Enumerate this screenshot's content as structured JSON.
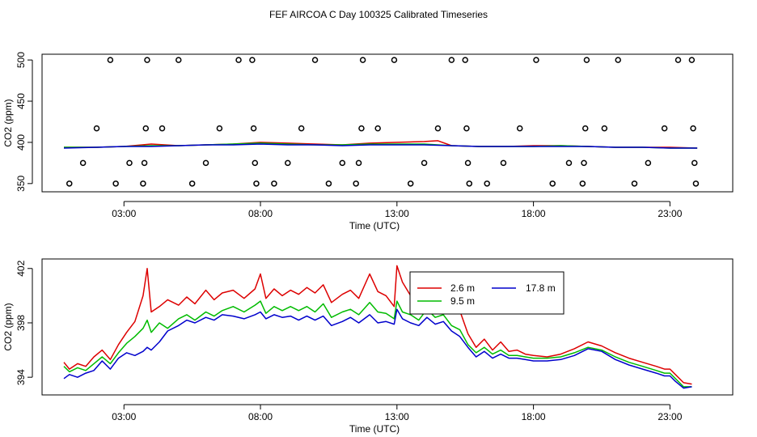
{
  "title": "FEF AIRCOA C  Day 100325  Calibrated Timeseries",
  "colors": {
    "red": "#dd0000",
    "green": "#00bb00",
    "blue": "#0000cc",
    "axis": "#000000"
  },
  "chart_data": [
    {
      "type": "scatter+line",
      "name": "top-panel",
      "xlabel": "Time (UTC)",
      "ylabel": "CO2 (ppm)",
      "xlim": [
        0,
        25.3
      ],
      "ylim": [
        340,
        507
      ],
      "xticks": [
        3,
        8,
        13,
        18,
        23
      ],
      "xtick_labels": [
        "03:00",
        "08:00",
        "13:00",
        "18:00",
        "23:00"
      ],
      "yticks": [
        350,
        400,
        450,
        500
      ],
      "ytick_labels": [
        "350",
        "400",
        "450",
        "500"
      ],
      "reference_points": [
        {
          "x": 1.0,
          "y": 350
        },
        {
          "x": 1.5,
          "y": 375
        },
        {
          "x": 2.0,
          "y": 417
        },
        {
          "x": 2.5,
          "y": 500
        },
        {
          "x": 2.7,
          "y": 350
        },
        {
          "x": 3.2,
          "y": 375
        },
        {
          "x": 3.7,
          "y": 350
        },
        {
          "x": 3.75,
          "y": 375
        },
        {
          "x": 3.8,
          "y": 417
        },
        {
          "x": 3.85,
          "y": 500
        },
        {
          "x": 4.4,
          "y": 417
        },
        {
          "x": 5.0,
          "y": 500
        },
        {
          "x": 5.5,
          "y": 350
        },
        {
          "x": 6.0,
          "y": 375
        },
        {
          "x": 6.5,
          "y": 417
        },
        {
          "x": 7.2,
          "y": 500
        },
        {
          "x": 7.7,
          "y": 500
        },
        {
          "x": 7.75,
          "y": 417
        },
        {
          "x": 7.8,
          "y": 375
        },
        {
          "x": 7.85,
          "y": 350
        },
        {
          "x": 8.5,
          "y": 350
        },
        {
          "x": 9.0,
          "y": 375
        },
        {
          "x": 9.5,
          "y": 417
        },
        {
          "x": 10.0,
          "y": 500
        },
        {
          "x": 10.5,
          "y": 350
        },
        {
          "x": 11.0,
          "y": 375
        },
        {
          "x": 11.5,
          "y": 350
        },
        {
          "x": 11.6,
          "y": 375
        },
        {
          "x": 11.7,
          "y": 417
        },
        {
          "x": 11.75,
          "y": 500
        },
        {
          "x": 12.3,
          "y": 417
        },
        {
          "x": 12.9,
          "y": 500
        },
        {
          "x": 13.5,
          "y": 350
        },
        {
          "x": 14.0,
          "y": 375
        },
        {
          "x": 14.5,
          "y": 417
        },
        {
          "x": 15.0,
          "y": 500
        },
        {
          "x": 15.5,
          "y": 500
        },
        {
          "x": 15.55,
          "y": 417
        },
        {
          "x": 15.6,
          "y": 375
        },
        {
          "x": 15.65,
          "y": 350
        },
        {
          "x": 16.3,
          "y": 350
        },
        {
          "x": 16.9,
          "y": 375
        },
        {
          "x": 17.5,
          "y": 417
        },
        {
          "x": 18.1,
          "y": 500
        },
        {
          "x": 18.7,
          "y": 350
        },
        {
          "x": 19.3,
          "y": 375
        },
        {
          "x": 19.8,
          "y": 350
        },
        {
          "x": 19.85,
          "y": 375
        },
        {
          "x": 19.9,
          "y": 417
        },
        {
          "x": 19.95,
          "y": 500
        },
        {
          "x": 20.6,
          "y": 417
        },
        {
          "x": 21.1,
          "y": 500
        },
        {
          "x": 21.7,
          "y": 350
        },
        {
          "x": 22.2,
          "y": 375
        },
        {
          "x": 22.8,
          "y": 417
        },
        {
          "x": 23.3,
          "y": 500
        },
        {
          "x": 23.8,
          "y": 500
        },
        {
          "x": 23.85,
          "y": 417
        },
        {
          "x": 23.9,
          "y": 375
        },
        {
          "x": 23.95,
          "y": 350
        }
      ],
      "series": [
        {
          "name": "2.6 m",
          "color": "red",
          "x": [
            0.8,
            2,
            3,
            4,
            5,
            6,
            7,
            8,
            9,
            10,
            11,
            12,
            13,
            14,
            14.5,
            15,
            16,
            17,
            18,
            19,
            20,
            21,
            22,
            23,
            24
          ],
          "y": [
            394,
            394,
            395,
            398,
            396,
            397,
            398,
            400,
            399,
            398,
            397,
            399,
            400,
            401,
            402,
            396,
            395,
            395,
            396,
            396,
            395,
            394,
            394,
            394,
            393
          ]
        },
        {
          "name": "9.5 m",
          "color": "green",
          "x": [
            0.8,
            2,
            3,
            4,
            5,
            6,
            7,
            8,
            9,
            10,
            11,
            12,
            13,
            14,
            15,
            16,
            17,
            18,
            19,
            20,
            21,
            22,
            23,
            24
          ],
          "y": [
            394,
            394,
            395,
            396,
            396,
            397,
            398,
            399,
            398,
            397,
            397,
            398,
            398,
            398,
            396,
            395,
            395,
            395,
            396,
            395,
            394,
            394,
            393,
            393
          ]
        },
        {
          "name": "17.8 m",
          "color": "blue",
          "x": [
            0.8,
            2,
            3,
            4,
            5,
            6,
            7,
            8,
            9,
            10,
            11,
            12,
            13,
            14,
            15,
            16,
            17,
            18,
            19,
            20,
            21,
            22,
            23,
            24
          ],
          "y": [
            393,
            394,
            395,
            395,
            396,
            397,
            397,
            398,
            397,
            397,
            396,
            397,
            397,
            397,
            396,
            395,
            395,
            395,
            395,
            395,
            394,
            394,
            393,
            393
          ]
        }
      ]
    },
    {
      "type": "line",
      "name": "bottom-panel",
      "xlabel": "Time (UTC)",
      "ylabel": "CO2 (ppm)",
      "xlim": [
        0,
        25.3
      ],
      "ylim": [
        392.7,
        402.7
      ],
      "xticks": [
        3,
        8,
        13,
        18,
        23
      ],
      "xtick_labels": [
        "03:00",
        "08:00",
        "13:00",
        "18:00",
        "23:00"
      ],
      "yticks": [
        394,
        398,
        402
      ],
      "ytick_labels": [
        "394",
        "398",
        "402"
      ],
      "legend": {
        "placement": "top-center",
        "entries": [
          "2.6 m",
          "9.5 m",
          "17.8 m"
        ]
      },
      "series": [
        {
          "name": "2.6 m",
          "color": "red",
          "x": [
            0.8,
            1.0,
            1.3,
            1.6,
            1.9,
            2.2,
            2.5,
            2.8,
            3.1,
            3.4,
            3.7,
            3.85,
            4.0,
            4.3,
            4.6,
            5.0,
            5.3,
            5.6,
            6.0,
            6.3,
            6.6,
            7.0,
            7.4,
            7.8,
            8.0,
            8.2,
            8.5,
            8.8,
            9.1,
            9.4,
            9.7,
            10.0,
            10.3,
            10.6,
            11.0,
            11.3,
            11.6,
            12.0,
            12.3,
            12.6,
            12.9,
            13.0,
            13.2,
            13.5,
            13.8,
            14.1,
            14.4,
            14.7,
            15.0,
            15.3,
            15.6,
            15.9,
            16.2,
            16.5,
            16.8,
            17.1,
            17.4,
            17.7,
            18.0,
            18.5,
            19.0,
            19.5,
            20.0,
            20.5,
            21.0,
            21.5,
            22.0,
            22.5,
            22.8,
            23.0,
            23.2,
            23.5,
            23.8
          ],
          "y": [
            395.1,
            394.6,
            395.0,
            394.8,
            395.5,
            396.0,
            395.3,
            396.4,
            397.3,
            398.1,
            400.0,
            402.0,
            398.8,
            399.2,
            399.7,
            399.3,
            399.9,
            399.4,
            400.4,
            399.7,
            400.2,
            400.4,
            399.8,
            400.5,
            401.6,
            399.8,
            400.5,
            400.0,
            400.4,
            400.1,
            400.6,
            400.2,
            400.8,
            399.5,
            400.1,
            400.4,
            399.8,
            401.6,
            400.3,
            400.0,
            399.2,
            402.2,
            401.0,
            400.0,
            399.5,
            401.6,
            400.2,
            400.8,
            399.7,
            398.9,
            397.2,
            396.2,
            396.8,
            396.0,
            396.6,
            395.9,
            396.0,
            395.7,
            395.6,
            395.5,
            395.7,
            396.1,
            396.6,
            396.3,
            395.8,
            395.4,
            395.1,
            394.8,
            394.6,
            394.6,
            394.2,
            393.6,
            393.5
          ]
        },
        {
          "name": "9.5 m",
          "color": "green",
          "x": [
            0.8,
            1.0,
            1.3,
            1.6,
            1.9,
            2.2,
            2.5,
            2.8,
            3.1,
            3.4,
            3.7,
            3.85,
            4.0,
            4.3,
            4.6,
            5.0,
            5.3,
            5.6,
            6.0,
            6.3,
            6.6,
            7.0,
            7.4,
            7.8,
            8.0,
            8.2,
            8.5,
            8.8,
            9.1,
            9.4,
            9.7,
            10.0,
            10.3,
            10.6,
            11.0,
            11.3,
            11.6,
            12.0,
            12.3,
            12.6,
            12.9,
            13.0,
            13.2,
            13.5,
            13.8,
            14.1,
            14.4,
            14.7,
            15.0,
            15.3,
            15.6,
            15.9,
            16.2,
            16.5,
            16.8,
            17.1,
            17.4,
            17.7,
            18.0,
            18.5,
            19.0,
            19.5,
            20.0,
            20.5,
            21.0,
            21.5,
            22.0,
            22.5,
            22.8,
            23.0,
            23.2,
            23.5,
            23.8
          ],
          "y": [
            394.8,
            394.4,
            394.7,
            394.5,
            395.0,
            395.5,
            395.0,
            395.8,
            396.5,
            397.0,
            397.6,
            398.2,
            397.3,
            398.0,
            397.6,
            398.3,
            398.6,
            398.2,
            398.8,
            398.5,
            398.9,
            399.2,
            398.8,
            399.3,
            399.6,
            398.7,
            399.2,
            398.9,
            399.2,
            398.9,
            399.2,
            398.8,
            399.4,
            398.4,
            398.8,
            399.0,
            398.6,
            399.5,
            398.8,
            398.7,
            398.3,
            399.6,
            398.8,
            398.6,
            398.2,
            399.0,
            398.4,
            398.6,
            397.8,
            397.5,
            396.4,
            395.8,
            396.2,
            395.7,
            396.0,
            395.6,
            395.6,
            395.5,
            395.4,
            395.4,
            395.5,
            395.8,
            396.2,
            396.0,
            395.5,
            395.1,
            394.8,
            394.5,
            394.3,
            394.3,
            393.9,
            393.3,
            393.3
          ]
        },
        {
          "name": "17.8 m",
          "color": "blue",
          "x": [
            0.8,
            1.0,
            1.3,
            1.6,
            1.9,
            2.2,
            2.5,
            2.8,
            3.1,
            3.4,
            3.7,
            3.85,
            4.0,
            4.3,
            4.6,
            5.0,
            5.3,
            5.6,
            6.0,
            6.3,
            6.6,
            7.0,
            7.4,
            7.8,
            8.0,
            8.2,
            8.5,
            8.8,
            9.1,
            9.4,
            9.7,
            10.0,
            10.3,
            10.6,
            11.0,
            11.3,
            11.6,
            12.0,
            12.3,
            12.6,
            12.9,
            13.0,
            13.2,
            13.5,
            13.8,
            14.1,
            14.4,
            14.7,
            15.0,
            15.3,
            15.6,
            15.9,
            16.2,
            16.5,
            16.8,
            17.1,
            17.4,
            17.7,
            18.0,
            18.5,
            19.0,
            19.5,
            20.0,
            20.5,
            21.0,
            21.5,
            22.0,
            22.5,
            22.8,
            23.0,
            23.2,
            23.5,
            23.8
          ],
          "y": [
            393.9,
            394.2,
            394.0,
            394.3,
            394.5,
            395.2,
            394.6,
            395.4,
            395.8,
            395.6,
            395.9,
            396.2,
            396.0,
            396.6,
            397.4,
            397.8,
            398.2,
            398.0,
            398.4,
            398.2,
            398.6,
            398.5,
            398.3,
            398.6,
            398.8,
            398.3,
            398.6,
            398.4,
            398.5,
            398.2,
            398.5,
            398.2,
            398.5,
            397.8,
            398.1,
            398.4,
            398.0,
            398.6,
            398.0,
            398.1,
            397.9,
            399.0,
            398.3,
            398.0,
            397.8,
            398.4,
            397.9,
            398.1,
            397.4,
            397.0,
            396.2,
            395.5,
            395.9,
            395.4,
            395.7,
            395.4,
            395.4,
            395.3,
            395.2,
            395.2,
            395.3,
            395.6,
            396.1,
            395.9,
            395.3,
            394.9,
            394.6,
            394.3,
            394.1,
            394.1,
            393.7,
            393.2,
            393.3
          ]
        }
      ]
    }
  ]
}
